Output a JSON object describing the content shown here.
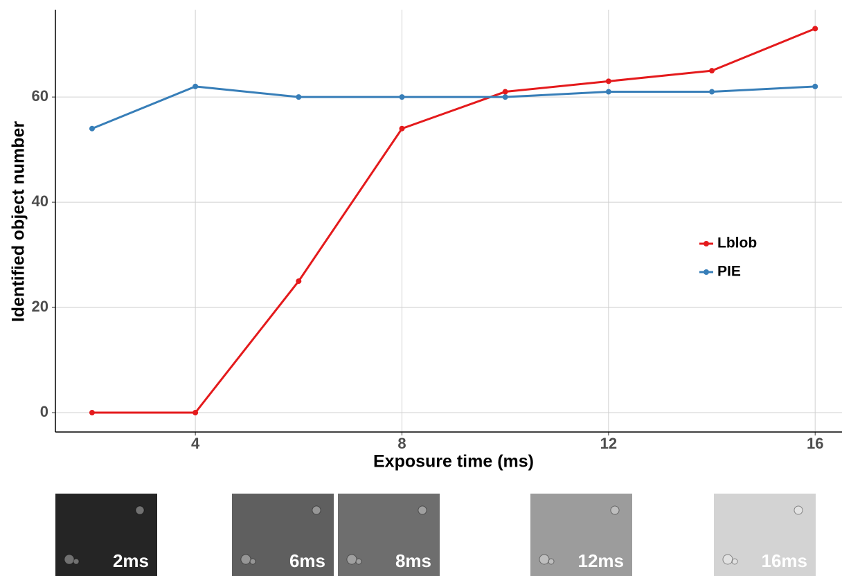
{
  "chart_data": {
    "type": "line",
    "x_label": "Exposure time (ms)",
    "y_label": "Identified object number",
    "x": [
      2,
      4,
      6,
      8,
      10,
      12,
      14,
      16
    ],
    "series": [
      {
        "name": "Lblob",
        "color": "#e41a1c",
        "values": [
          0,
          0,
          25,
          54,
          61,
          63,
          65,
          73
        ]
      },
      {
        "name": "PIE",
        "color": "#377eb8",
        "values": [
          54,
          62,
          60,
          60,
          60,
          61,
          61,
          62
        ]
      }
    ],
    "xlim": [
      1.29,
      16.52
    ],
    "ylim": [
      -3.68,
      76.6
    ],
    "xticks": [
      4,
      8,
      12,
      16
    ],
    "yticks": [
      0,
      20,
      40,
      60
    ],
    "grid": true,
    "legend": "right"
  },
  "thumbnails": [
    {
      "label": "2ms",
      "color": "#252525"
    },
    {
      "label": "6ms",
      "color": "#5f5f5f"
    },
    {
      "label": "8ms",
      "color": "#6e6e6e"
    },
    {
      "label": "12ms",
      "color": "#9c9c9c"
    },
    {
      "label": "16ms",
      "color": "#d3d3d3"
    }
  ]
}
